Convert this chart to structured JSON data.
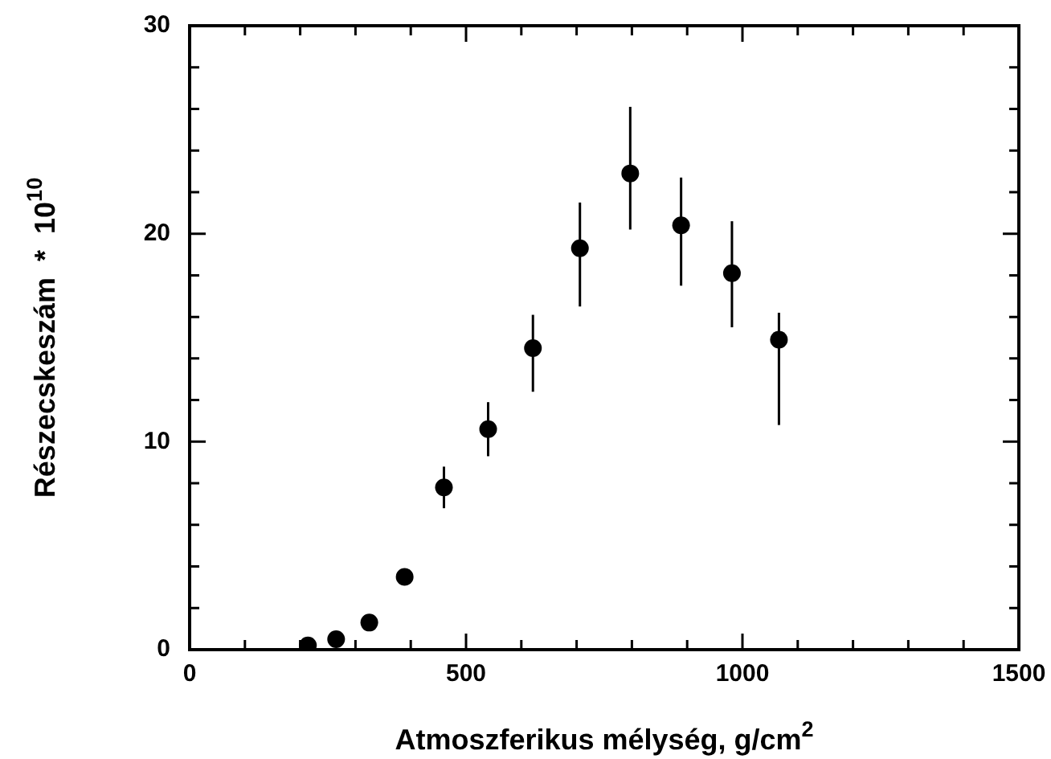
{
  "chart_data": {
    "type": "scatter",
    "xlabel": "Atmoszferikus mélység, g/cm$^{2}$",
    "ylabel": "Részecskeszám  *  10$^{10}$",
    "x": [
      214,
      265,
      325,
      389,
      460,
      540,
      621,
      706,
      797,
      889,
      981,
      1066
    ],
    "values": [
      0.2,
      0.5,
      1.3,
      3.5,
      7.8,
      10.6,
      14.5,
      19.3,
      22.9,
      20.4,
      18.1,
      14.9
    ],
    "errors": [
      null,
      null,
      null,
      null,
      [
        6.8,
        8.8
      ],
      [
        9.3,
        11.9
      ],
      [
        12.4,
        16.1
      ],
      [
        16.5,
        21.5
      ],
      [
        20.2,
        26.1
      ],
      [
        17.5,
        22.7
      ],
      [
        15.5,
        20.6
      ],
      [
        10.8,
        16.2
      ]
    ],
    "color": "#000000",
    "marker": "circle",
    "grid": false,
    "legend": false,
    "xlim": [
      0,
      1500
    ],
    "xticks": [
      0,
      {
        "value": 100,
        "label": null
      },
      {
        "value": 200,
        "label": null
      },
      {
        "value": 300,
        "label": null
      },
      {
        "value": 400,
        "label": null
      },
      500,
      {
        "value": 600,
        "label": null
      },
      {
        "value": 700,
        "label": null
      },
      {
        "value": 800,
        "label": null
      },
      {
        "value": 900,
        "label": null
      },
      1000,
      {
        "value": 1100,
        "label": null
      },
      {
        "value": 1200,
        "label": null
      },
      {
        "value": 1300,
        "label": null
      },
      {
        "value": 1400,
        "label": null
      },
      1500
    ],
    "ylim": [
      0,
      30
    ],
    "yticks": [
      0,
      {
        "value": 2,
        "label": null
      },
      {
        "value": 4,
        "label": null
      },
      {
        "value": 6,
        "label": null
      },
      {
        "value": 8,
        "label": null
      },
      10,
      {
        "value": 12,
        "label": null
      },
      {
        "value": 14,
        "label": null
      },
      {
        "value": 16,
        "label": null
      },
      {
        "value": 18,
        "label": null
      },
      20,
      {
        "value": 22,
        "label": null
      },
      {
        "value": 24,
        "label": null
      },
      {
        "value": 26,
        "label": null
      },
      {
        "value": 28,
        "label": null
      },
      30
    ]
  }
}
